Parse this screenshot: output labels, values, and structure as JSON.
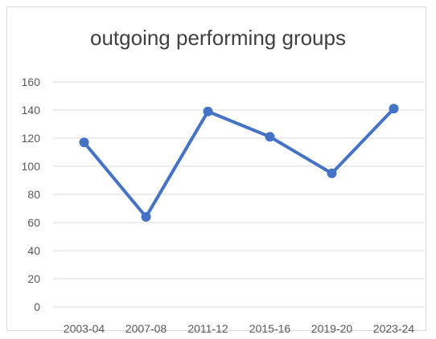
{
  "chart_data": {
    "type": "line",
    "title": "outgoing performing groups",
    "xlabel": "",
    "ylabel": "",
    "categories": [
      "2003-04",
      "2007-08",
      "2011-12",
      "2015-16",
      "2019-20",
      "2023-24"
    ],
    "series": [
      {
        "values": [
          117,
          64,
          139,
          121,
          95,
          141
        ]
      }
    ],
    "ylim": [
      0,
      160
    ],
    "yticks": [
      0,
      20,
      40,
      60,
      80,
      100,
      120,
      140,
      160
    ],
    "grid": true,
    "legend": "none",
    "line_color": "#4472c4",
    "grid_color": "#d9d9d9"
  }
}
